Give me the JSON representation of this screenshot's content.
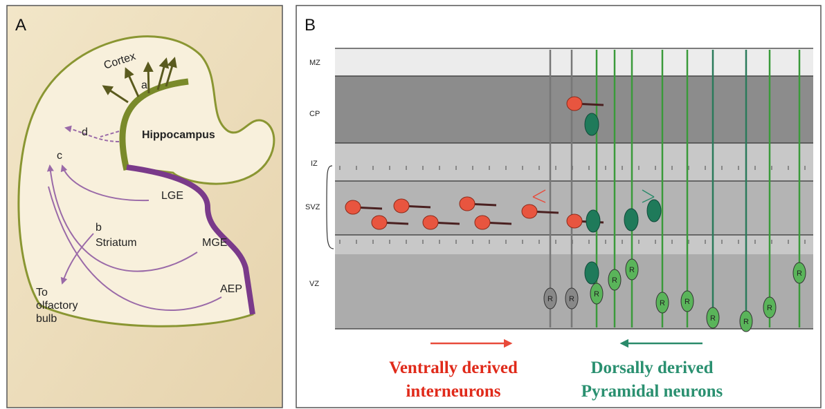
{
  "panel_a": {
    "label": "A",
    "labels": {
      "cortex": "Cortex",
      "a": "a",
      "d": "d",
      "c": "c",
      "hippocampus": "Hippocampus",
      "lge": "LGE",
      "b": "b",
      "striatum": "Striatum",
      "mge": "MGE",
      "aep": "AEP",
      "olfactory": [
        "To",
        "olfactory",
        "bulb"
      ]
    }
  },
  "panel_b": {
    "label": "B",
    "zones": [
      "MZ",
      "CP",
      "IZ",
      "SVZ",
      "VZ"
    ],
    "cell_labels": [
      "R",
      "R",
      "R",
      "R",
      "R",
      "R",
      "R",
      "R",
      "R",
      "R",
      "R"
    ],
    "ventral_caption": [
      "Ventrally derived",
      "interneurons"
    ],
    "dorsal_caption": [
      "Dorsally derived",
      "Pyramidal neurons"
    ]
  }
}
